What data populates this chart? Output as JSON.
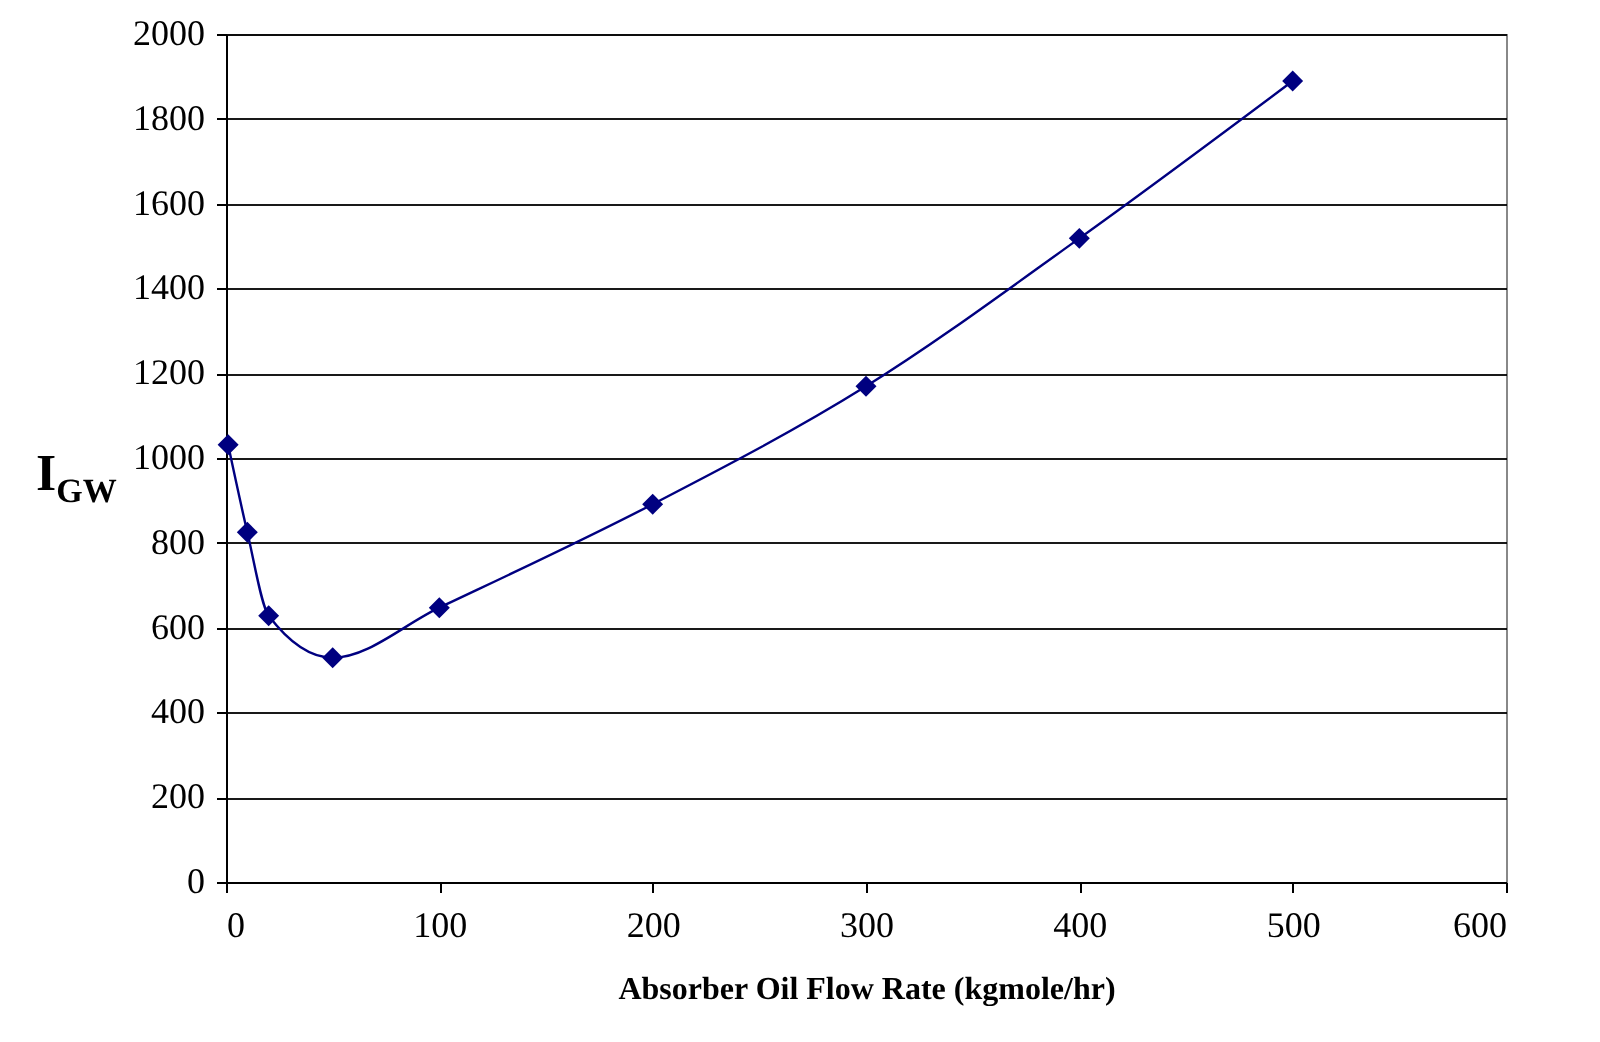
{
  "chart_data": {
    "type": "line",
    "xlabel": "Absorber Oil Flow Rate  (kgmole/hr)",
    "ylabel": "I$_{GW}$",
    "x": [
      1,
      10,
      20,
      50,
      100,
      200,
      300,
      400,
      500
    ],
    "series": [
      {
        "color": "#000080",
        "values": [
          1031,
          825,
          628,
          529,
          647,
          891,
          1169,
          1518,
          1889
        ]
      }
    ],
    "xlim": [
      0,
      600
    ],
    "xticks": [
      0,
      100,
      200,
      300,
      400,
      500,
      600
    ],
    "ylim": [
      0,
      2000
    ],
    "yticks": [
      0,
      200,
      400,
      600,
      800,
      1000,
      1200,
      1400,
      1600,
      1800,
      2000
    ],
    "grid": "y",
    "marker": "diamond",
    "line_style": "solid"
  }
}
